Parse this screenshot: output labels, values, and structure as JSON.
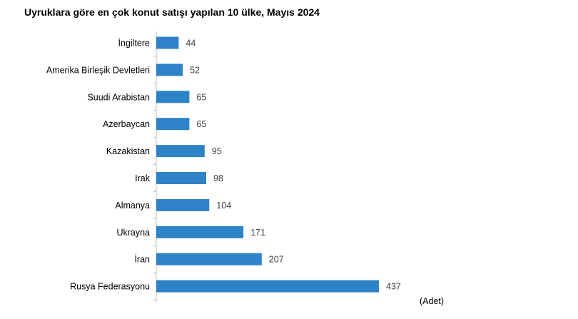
{
  "chart_data": {
    "type": "bar",
    "orientation": "horizontal",
    "title": "Uyruklara göre en çok konut satışı yapılan 10 ülke, Mayıs 2024",
    "unit_label": "(Adet)",
    "categories": [
      "İngiltere",
      "Amerika Birleşik Devletleri",
      "Suudi Arabistan",
      "Azerbaycan",
      "Kazakistan",
      "Irak",
      "Almanya",
      "Ukrayna",
      "İran",
      "Rusya Federasyonu"
    ],
    "values": [
      44,
      52,
      65,
      65,
      95,
      98,
      104,
      171,
      207,
      437
    ],
    "bar_color": "#2e82c8",
    "xlim": [
      0,
      437
    ],
    "grid": false,
    "legend": "none"
  }
}
